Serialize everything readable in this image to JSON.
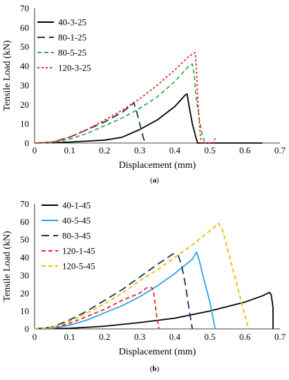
{
  "chart_data": [
    {
      "type": "line",
      "panel_label": "(a)",
      "xlabel": "Displacement (mm)",
      "ylabel": "Tensile Load (kN)",
      "xlim": [
        0,
        0.7
      ],
      "ylim": [
        0,
        70
      ],
      "x_ticks": [
        "0",
        "0.1",
        "0.2",
        "0.3",
        "0.4",
        "0.5",
        "0.6",
        "0.7"
      ],
      "y_ticks": [
        "0",
        "10",
        "20",
        "30",
        "40",
        "50",
        "60",
        "70"
      ],
      "grid": false,
      "legend_position": "top-left",
      "series": [
        {
          "name": "40-3-25",
          "color": "#000000",
          "dash": "solid",
          "points": [
            [
              0,
              0
            ],
            [
              0.1,
              0.5
            ],
            [
              0.2,
              1.5
            ],
            [
              0.25,
              3
            ],
            [
              0.3,
              7
            ],
            [
              0.35,
              12
            ],
            [
              0.4,
              19
            ],
            [
              0.43,
              25
            ],
            [
              0.435,
              25.5
            ],
            [
              0.44,
              20
            ],
            [
              0.45,
              10
            ],
            [
              0.46,
              3
            ],
            [
              0.465,
              0
            ],
            [
              0.6,
              0
            ],
            [
              0.65,
              0
            ]
          ]
        },
        {
          "name": "80-1-25",
          "color": "#1a2e5a",
          "dash": "long-dash",
          "points": [
            [
              0,
              0
            ],
            [
              0.05,
              0.5
            ],
            [
              0.1,
              3
            ],
            [
              0.15,
              7
            ],
            [
              0.2,
              11
            ],
            [
              0.25,
              16
            ],
            [
              0.275,
              19.5
            ],
            [
              0.283,
              21
            ],
            [
              0.29,
              17
            ],
            [
              0.3,
              10
            ],
            [
              0.31,
              3
            ],
            [
              0.315,
              0
            ]
          ]
        },
        {
          "name": "80-5-25",
          "color": "#33aa55",
          "dash": "dash",
          "points": [
            [
              0,
              0
            ],
            [
              0.05,
              0.3
            ],
            [
              0.1,
              2
            ],
            [
              0.15,
              5
            ],
            [
              0.2,
              9
            ],
            [
              0.25,
              13
            ],
            [
              0.3,
              18
            ],
            [
              0.35,
              24
            ],
            [
              0.4,
              32
            ],
            [
              0.44,
              40
            ],
            [
              0.45,
              41
            ],
            [
              0.455,
              36
            ],
            [
              0.46,
              25
            ],
            [
              0.47,
              12
            ],
            [
              0.48,
              3
            ],
            [
              0.487,
              0
            ]
          ]
        },
        {
          "name": "120-3-25",
          "color": "#ee2222",
          "dash": "dot",
          "points": [
            [
              0,
              0
            ],
            [
              0.05,
              0.5
            ],
            [
              0.1,
              3
            ],
            [
              0.15,
              7
            ],
            [
              0.2,
              12
            ],
            [
              0.25,
              17
            ],
            [
              0.3,
              23
            ],
            [
              0.35,
              30
            ],
            [
              0.4,
              38
            ],
            [
              0.44,
              45
            ],
            [
              0.458,
              47
            ],
            [
              0.462,
              38
            ],
            [
              0.465,
              25
            ],
            [
              0.47,
              10
            ],
            [
              0.475,
              0
            ],
            [
              0.51,
              0
            ],
            [
              0.515,
              2.5
            ]
          ]
        }
      ]
    },
    {
      "type": "line",
      "panel_label": "(b)",
      "xlabel": "Displacement (mm)",
      "ylabel": "Tensile Load (kN)",
      "xlim": [
        0,
        0.7
      ],
      "ylim": [
        0,
        70
      ],
      "x_ticks": [
        "0",
        "0.1",
        "0.2",
        "0.3",
        "0.4",
        "0.5",
        "0.6",
        "0.7"
      ],
      "y_ticks": [
        "0",
        "10",
        "20",
        "30",
        "40",
        "50",
        "60",
        "70"
      ],
      "grid": false,
      "legend_position": "top-left",
      "series": [
        {
          "name": "40-1-45",
          "color": "#000000",
          "dash": "solid",
          "points": [
            [
              0,
              0
            ],
            [
              0.1,
              0.3
            ],
            [
              0.2,
              1.5
            ],
            [
              0.3,
              3.5
            ],
            [
              0.4,
              6
            ],
            [
              0.5,
              10
            ],
            [
              0.6,
              15
            ],
            [
              0.65,
              18.5
            ],
            [
              0.67,
              20.5
            ],
            [
              0.675,
              19
            ],
            [
              0.68,
              12
            ],
            [
              0.68,
              0
            ]
          ]
        },
        {
          "name": "40-5-45",
          "color": "#29a3e6",
          "dash": "solid",
          "points": [
            [
              0,
              0
            ],
            [
              0.05,
              0.3
            ],
            [
              0.1,
              2
            ],
            [
              0.15,
              5
            ],
            [
              0.2,
              9
            ],
            [
              0.25,
              13
            ],
            [
              0.3,
              18
            ],
            [
              0.35,
              24
            ],
            [
              0.4,
              31
            ],
            [
              0.45,
              39
            ],
            [
              0.462,
              43
            ],
            [
              0.47,
              38
            ],
            [
              0.48,
              30
            ],
            [
              0.5,
              15
            ],
            [
              0.515,
              0
            ]
          ]
        },
        {
          "name": "80-3-45",
          "color": "#1a2e5a",
          "dash": "long-dash",
          "points": [
            [
              0,
              0
            ],
            [
              0.05,
              1
            ],
            [
              0.1,
              5
            ],
            [
              0.15,
              10
            ],
            [
              0.2,
              16
            ],
            [
              0.25,
              22
            ],
            [
              0.3,
              29
            ],
            [
              0.35,
              36
            ],
            [
              0.38,
              40
            ],
            [
              0.395,
              42
            ],
            [
              0.41,
              41
            ],
            [
              0.42,
              35
            ],
            [
              0.43,
              25
            ],
            [
              0.44,
              12
            ],
            [
              0.45,
              0
            ]
          ]
        },
        {
          "name": "120-1-45",
          "color": "#ee2222",
          "dash": "dash",
          "points": [
            [
              0,
              0
            ],
            [
              0.05,
              0.5
            ],
            [
              0.1,
              3
            ],
            [
              0.15,
              7
            ],
            [
              0.2,
              11
            ],
            [
              0.25,
              16
            ],
            [
              0.3,
              20
            ],
            [
              0.32,
              23
            ],
            [
              0.335,
              23
            ],
            [
              0.34,
              20
            ],
            [
              0.345,
              12
            ],
            [
              0.35,
              5
            ],
            [
              0.355,
              0
            ]
          ]
        },
        {
          "name": "120-5-45",
          "color": "#f2b700",
          "dash": "dash",
          "points": [
            [
              0,
              0
            ],
            [
              0.05,
              0.8
            ],
            [
              0.1,
              4
            ],
            [
              0.15,
              9
            ],
            [
              0.2,
              14
            ],
            [
              0.25,
              20
            ],
            [
              0.3,
              27
            ],
            [
              0.35,
              33
            ],
            [
              0.4,
              40
            ],
            [
              0.45,
              47
            ],
            [
              0.5,
              55
            ],
            [
              0.525,
              59
            ],
            [
              0.535,
              56
            ],
            [
              0.55,
              45
            ],
            [
              0.57,
              30
            ],
            [
              0.59,
              15
            ],
            [
              0.61,
              0
            ]
          ]
        }
      ]
    }
  ]
}
